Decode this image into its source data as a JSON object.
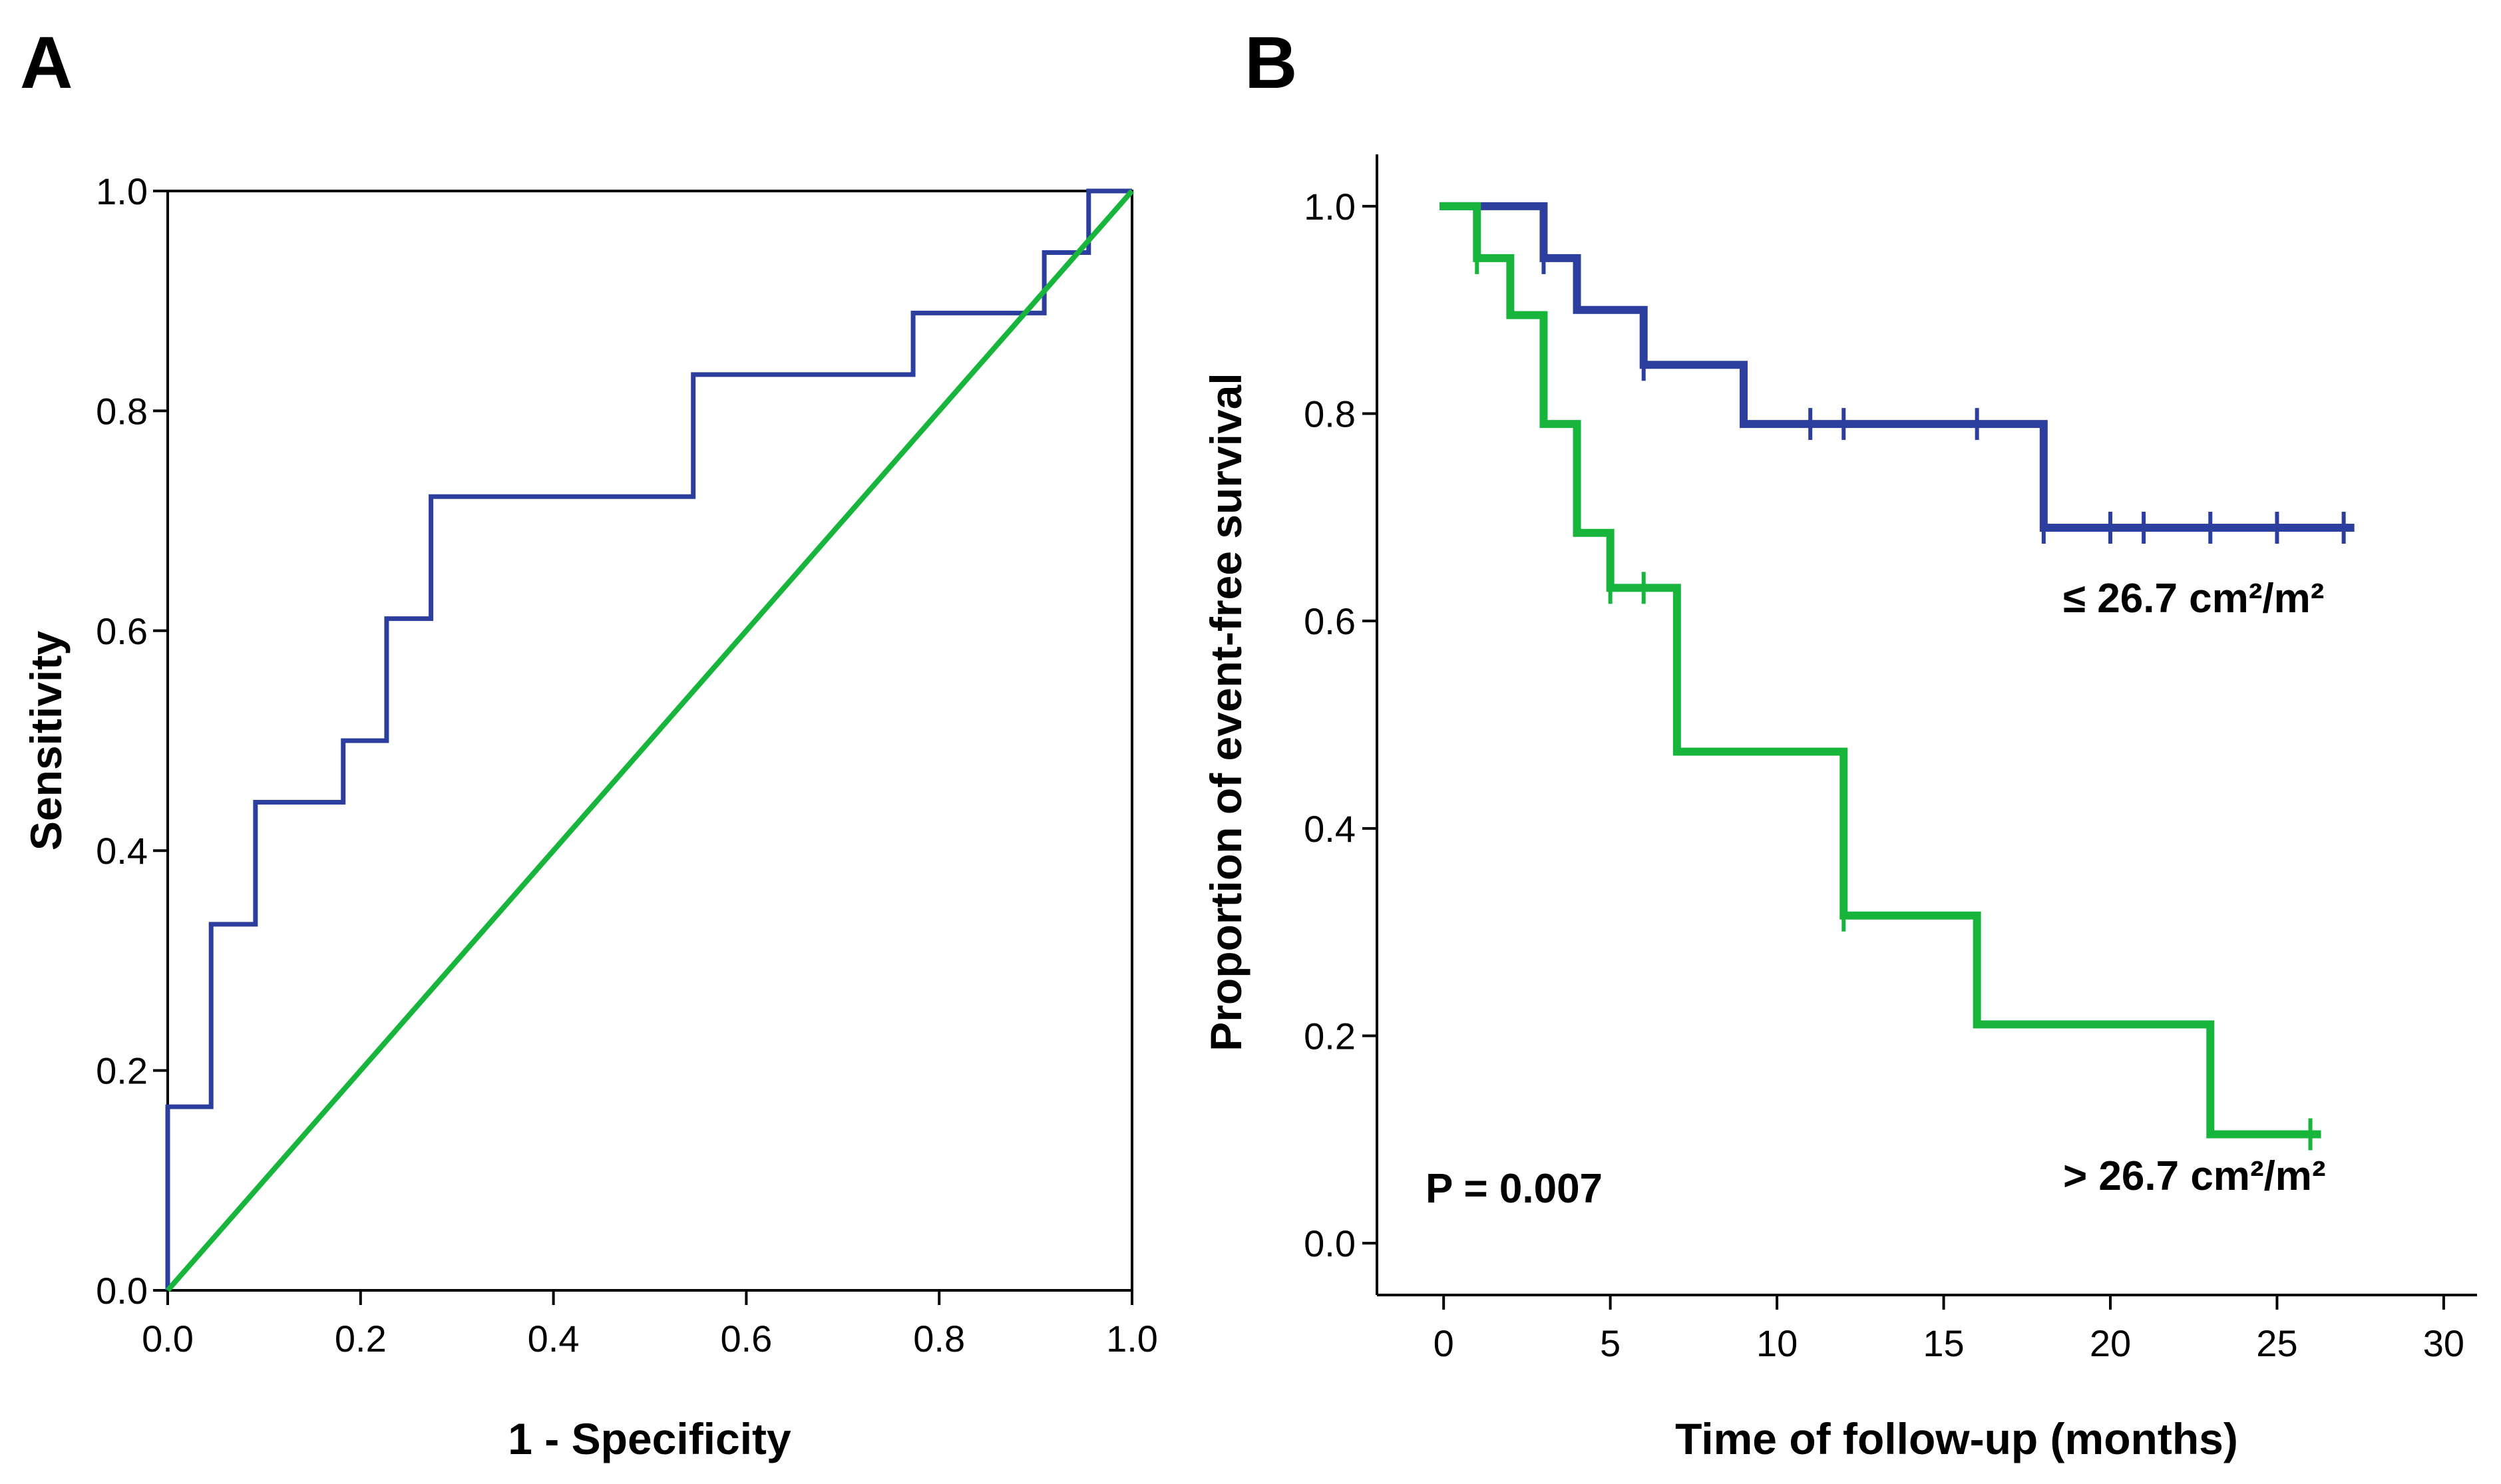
{
  "figure": {
    "panel_a_label": "A",
    "panel_b_label": "B"
  },
  "chart_data": [
    {
      "type": "line",
      "panel": "A",
      "title": "",
      "xlabel": "1 - Specificity",
      "ylabel": "Sensitivity",
      "xlim": [
        0,
        1
      ],
      "ylim": [
        0,
        1
      ],
      "xticks": [
        "0.0",
        "0.2",
        "0.4",
        "0.6",
        "0.8",
        "1.0"
      ],
      "yticks": [
        "0.0",
        "0.2",
        "0.4",
        "0.6",
        "0.8",
        "1.0"
      ],
      "grid": false,
      "series": [
        {
          "color": "#2c3e9e",
          "step": true,
          "x": [
            0.0,
            0.0,
            0.045,
            0.045,
            0.091,
            0.091,
            0.182,
            0.182,
            0.227,
            0.227,
            0.273,
            0.273,
            0.545,
            0.545,
            0.773,
            0.773,
            0.909,
            0.909,
            0.955,
            0.955,
            1.0
          ],
          "y": [
            0.0,
            0.167,
            0.167,
            0.333,
            0.333,
            0.444,
            0.444,
            0.5,
            0.5,
            0.611,
            0.611,
            0.722,
            0.722,
            0.833,
            0.833,
            0.889,
            0.889,
            0.944,
            0.944,
            1.0,
            1.0
          ]
        },
        {
          "color": "#17b53c",
          "step": false,
          "x": [
            0.0,
            1.0
          ],
          "y": [
            0.0,
            1.0
          ]
        }
      ]
    },
    {
      "type": "line",
      "panel": "B",
      "title": "",
      "xlabel": "Time of follow-up (months)",
      "ylabel": "Proportion of event-free survival",
      "xlim": [
        -2,
        31
      ],
      "ylim": [
        -0.05,
        1.05
      ],
      "xticks": [
        "0",
        "5",
        "10",
        "15",
        "20",
        "25",
        "30"
      ],
      "yticks": [
        "0.0",
        "0.2",
        "0.4",
        "0.6",
        "0.8",
        "1.0"
      ],
      "grid": false,
      "annotation": "P = 0.007",
      "series": [
        {
          "name": "≤ 26.7 cm²/m²",
          "color": "#2c3e9e",
          "step": true,
          "x": [
            0,
            3,
            4,
            6,
            9,
            18,
            27.2
          ],
          "y": [
            1.0,
            0.95,
            0.9,
            0.847,
            0.79,
            0.69,
            0.69
          ],
          "censored": [
            {
              "x": 3.0,
              "y": 0.95
            },
            {
              "x": 6.0,
              "y": 0.847
            },
            {
              "x": 11.0,
              "y": 0.79
            },
            {
              "x": 12.0,
              "y": 0.79
            },
            {
              "x": 16.0,
              "y": 0.79
            },
            {
              "x": 18.0,
              "y": 0.69
            },
            {
              "x": 20.0,
              "y": 0.69
            },
            {
              "x": 21.0,
              "y": 0.69
            },
            {
              "x": 23.0,
              "y": 0.69
            },
            {
              "x": 25.0,
              "y": 0.69
            },
            {
              "x": 27.0,
              "y": 0.69
            }
          ]
        },
        {
          "name": "> 26.7 cm²/m²",
          "color": "#17b53c",
          "step": true,
          "x": [
            0,
            1,
            2,
            3,
            4,
            5,
            7,
            12,
            16,
            23,
            26.2
          ],
          "y": [
            1.0,
            0.95,
            0.895,
            0.79,
            0.685,
            0.632,
            0.474,
            0.316,
            0.211,
            0.105,
            0.105
          ],
          "censored": [
            {
              "x": 1.0,
              "y": 0.95
            },
            {
              "x": 5.0,
              "y": 0.632
            },
            {
              "x": 6.0,
              "y": 0.632
            },
            {
              "x": 12.0,
              "y": 0.316
            },
            {
              "x": 26.0,
              "y": 0.105
            }
          ]
        }
      ]
    }
  ]
}
